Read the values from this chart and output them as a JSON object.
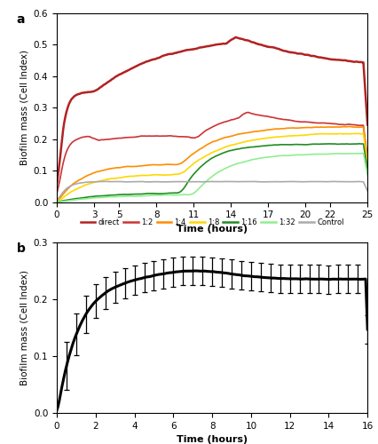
{
  "panel_a": {
    "title": "a",
    "xlabel": "Time (hours)",
    "ylabel": "Biofilm mass (Cell Index)",
    "xlim": [
      0,
      25
    ],
    "ylim": [
      0,
      0.6
    ],
    "xticks": [
      0,
      3,
      5,
      8,
      11,
      14,
      17,
      20,
      22,
      25
    ],
    "yticks": [
      0,
      0.1,
      0.2,
      0.3,
      0.4,
      0.5,
      0.6
    ],
    "series": {
      "direct": {
        "color": "#B22222",
        "linewidth": 1.8
      },
      "1:2": {
        "color": "#CC3333",
        "linewidth": 1.2
      },
      "1:4": {
        "color": "#FF8C00",
        "linewidth": 1.2
      },
      "1:8": {
        "color": "#FFD700",
        "linewidth": 1.2
      },
      "1:16": {
        "color": "#228B22",
        "linewidth": 1.2
      },
      "1:32": {
        "color": "#90EE90",
        "linewidth": 1.2
      },
      "Control": {
        "color": "#AAAAAA",
        "linewidth": 1.2
      }
    },
    "legend_order": [
      "direct",
      "1:2",
      "1:4",
      "1:8",
      "1:16",
      "1:32",
      "Control"
    ]
  },
  "panel_b": {
    "title": "b",
    "xlabel": "Time (hours)",
    "ylabel": "Biofilm mass (Cell Index)",
    "xlim": [
      0,
      16
    ],
    "ylim": [
      0,
      0.3
    ],
    "xticks": [
      0,
      2,
      4,
      6,
      8,
      10,
      12,
      14,
      16
    ],
    "yticks": [
      0,
      0.1,
      0.2,
      0.3
    ],
    "line_color": "#000000",
    "linewidth": 2.2
  }
}
